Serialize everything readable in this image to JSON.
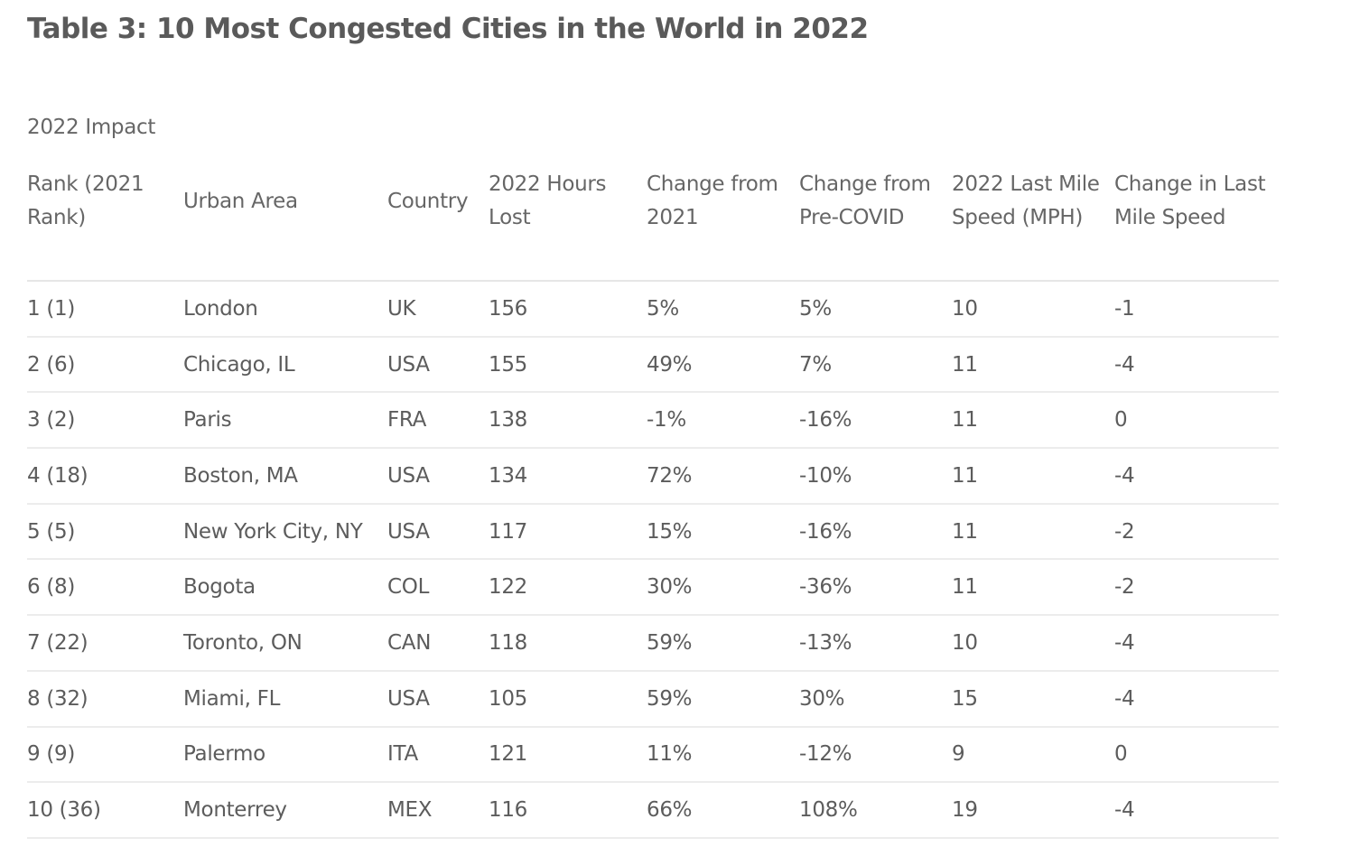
{
  "title": "Table 3: 10 Most Congested Cities in the World in 2022",
  "group_label": "2022 Impact",
  "columns": [
    [
      "Rank (2021",
      "Rank)"
    ],
    [
      "Urban Area"
    ],
    [
      "Country"
    ],
    [
      "2022 Hours",
      "Lost"
    ],
    [
      "Change from",
      "2021"
    ],
    [
      "Change from",
      "Pre-COVID"
    ],
    [
      "2022 Last Mile",
      "Speed (MPH)"
    ],
    [
      "Change in Last",
      "Mile Speed"
    ]
  ],
  "rows": [
    [
      "1 (1)",
      "London",
      "UK",
      "156",
      "5%",
      "5%",
      "10",
      "-1"
    ],
    [
      "2 (6)",
      "Chicago, IL",
      "USA",
      "155",
      "49%",
      "7%",
      "11",
      "-4"
    ],
    [
      "3 (2)",
      "Paris",
      "FRA",
      "138",
      "-1%",
      "-16%",
      "11",
      "0"
    ],
    [
      "4 (18)",
      "Boston, MA",
      "USA",
      "134",
      "72%",
      "-10%",
      "11",
      "-4"
    ],
    [
      "5 (5)",
      "New York City, NY",
      "USA",
      "117",
      "15%",
      "-16%",
      "11",
      "-2"
    ],
    [
      "6 (8)",
      "Bogota",
      "COL",
      "122",
      "30%",
      "-36%",
      "11",
      "-2"
    ],
    [
      "7 (22)",
      "Toronto, ON",
      "CAN",
      "118",
      "59%",
      "-13%",
      "10",
      "-4"
    ],
    [
      "8 (32)",
      "Miami, FL",
      "USA",
      "105",
      "59%",
      "30%",
      "15",
      "-4"
    ],
    [
      "9 (9)",
      "Palermo",
      "ITA",
      "121",
      "11%",
      "-12%",
      "9",
      "0"
    ],
    [
      "10 (36)",
      "Monterrey",
      "MEX",
      "116",
      "66%",
      "108%",
      "19",
      "-4"
    ]
  ]
}
